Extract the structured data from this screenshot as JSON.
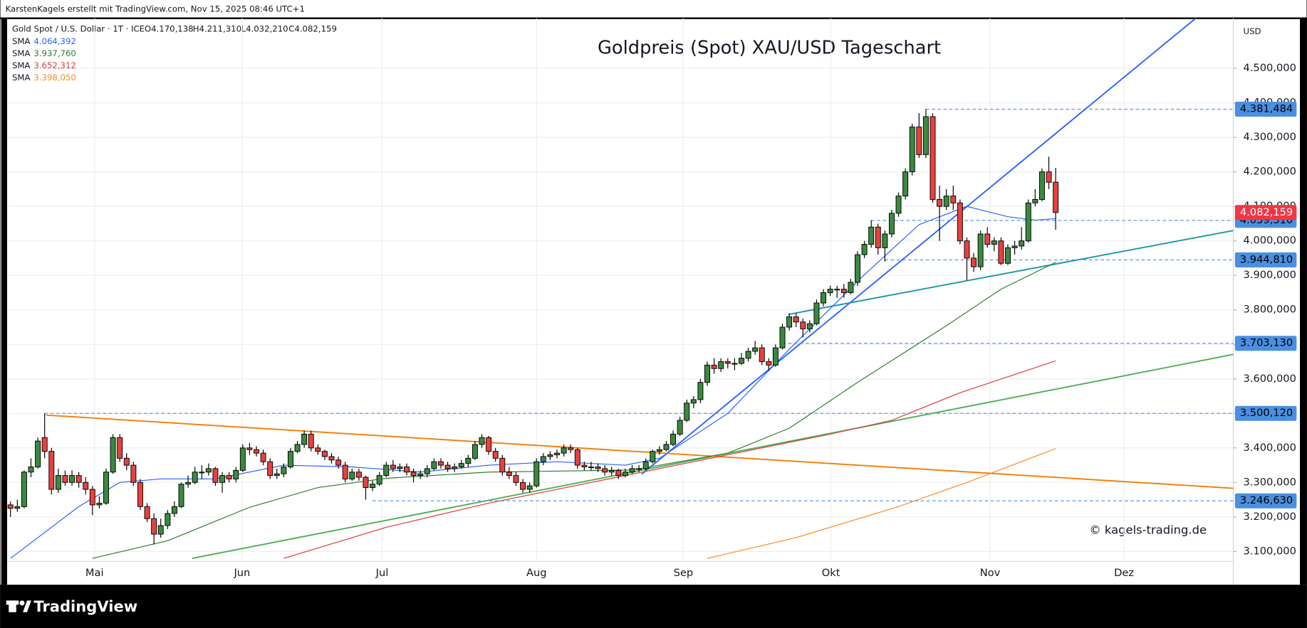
{
  "header": {
    "credit": "KarstenKagels erstellt mit TradingView.com, Nov 15, 2025 08:46 UTC+1",
    "symbol": "Gold Spot / U.S. Dollar · 1T · ICE",
    "ohlc_labels": [
      "O4.170,138",
      "H4.211,310",
      "L4.032,210",
      "C4.082,159"
    ]
  },
  "footer": {
    "brand": "TradingView"
  },
  "chart_data": {
    "type": "candlestick",
    "title": "Goldpreis (Spot) XAU/USD Tageschart",
    "y_unit": "USD",
    "watermark": "© kagels-trading.de",
    "up_color": "#3a8a3e",
    "down_color": "#e8413e",
    "grid": true,
    "xlim": [
      -0.5,
      179
    ],
    "ylim": [
      3071,
      4645
    ],
    "xticks": [
      {
        "value": 12.3,
        "label": "Mai"
      },
      {
        "value": 33.9,
        "label": "Jun"
      },
      {
        "value": 54.4,
        "label": "Jul"
      },
      {
        "value": 77,
        "label": "Aug"
      },
      {
        "value": 98.5,
        "label": "Sep"
      },
      {
        "value": 120.1,
        "label": "Okt"
      },
      {
        "value": 143.4,
        "label": "Nov"
      },
      {
        "value": 163,
        "label": "Dez"
      }
    ],
    "yticks": [
      {
        "value": 3100,
        "label": "3.100,000"
      },
      {
        "value": 3200,
        "label": "3.200,000"
      },
      {
        "value": 3300,
        "label": "3.300,000"
      },
      {
        "value": 3400,
        "label": "3.400,000"
      },
      {
        "value": 3500,
        "label": "3.500,000"
      },
      {
        "value": 3600,
        "label": "3.600,000"
      },
      {
        "value": 3700,
        "label": "3.700,000"
      },
      {
        "value": 3800,
        "label": "3.800,000"
      },
      {
        "value": 3900,
        "label": "3.900,000"
      },
      {
        "value": 4000,
        "label": "4.000,000"
      },
      {
        "value": 4100,
        "label": "4.100,000"
      },
      {
        "value": 4200,
        "label": "4.200,000"
      },
      {
        "value": 4300,
        "label": "4.300,000"
      },
      {
        "value": 4400,
        "label": "4.400,000"
      },
      {
        "value": 4500,
        "label": "4.500,000"
      }
    ],
    "ohlc": [
      [
        3235,
        3245,
        3200,
        3225
      ],
      [
        3225,
        3250,
        3215,
        3230
      ],
      [
        3230,
        3335,
        3225,
        3330
      ],
      [
        3330,
        3370,
        3315,
        3345
      ],
      [
        3345,
        3430,
        3340,
        3420
      ],
      [
        3430,
        3500,
        3370,
        3390
      ],
      [
        3390,
        3400,
        3265,
        3280
      ],
      [
        3280,
        3340,
        3270,
        3320
      ],
      [
        3320,
        3335,
        3290,
        3300
      ],
      [
        3300,
        3335,
        3290,
        3320
      ],
      [
        3320,
        3330,
        3285,
        3300
      ],
      [
        3300,
        3315,
        3265,
        3280
      ],
      [
        3280,
        3290,
        3205,
        3235
      ],
      [
        3235,
        3260,
        3225,
        3240
      ],
      [
        3240,
        3340,
        3235,
        3330
      ],
      [
        3330,
        3440,
        3325,
        3430
      ],
      [
        3430,
        3440,
        3360,
        3370
      ],
      [
        3370,
        3385,
        3335,
        3350
      ],
      [
        3350,
        3360,
        3290,
        3300
      ],
      [
        3300,
        3310,
        3220,
        3230
      ],
      [
        3230,
        3240,
        3185,
        3195
      ],
      [
        3195,
        3210,
        3120,
        3150
      ],
      [
        3150,
        3195,
        3140,
        3175
      ],
      [
        3175,
        3220,
        3165,
        3210
      ],
      [
        3210,
        3245,
        3200,
        3230
      ],
      [
        3230,
        3300,
        3225,
        3295
      ],
      [
        3295,
        3320,
        3285,
        3300
      ],
      [
        3300,
        3345,
        3295,
        3330
      ],
      [
        3330,
        3350,
        3310,
        3330
      ],
      [
        3330,
        3355,
        3320,
        3340
      ],
      [
        3340,
        3345,
        3290,
        3300
      ],
      [
        3300,
        3330,
        3270,
        3320
      ],
      [
        3320,
        3330,
        3300,
        3310
      ],
      [
        3310,
        3345,
        3300,
        3335
      ],
      [
        3335,
        3410,
        3330,
        3400
      ],
      [
        3400,
        3415,
        3380,
        3395
      ],
      [
        3395,
        3405,
        3375,
        3385
      ],
      [
        3385,
        3395,
        3350,
        3360
      ],
      [
        3360,
        3370,
        3310,
        3320
      ],
      [
        3320,
        3340,
        3310,
        3325
      ],
      [
        3325,
        3355,
        3315,
        3345
      ],
      [
        3345,
        3400,
        3340,
        3390
      ],
      [
        3390,
        3420,
        3385,
        3410
      ],
      [
        3410,
        3450,
        3400,
        3440
      ],
      [
        3440,
        3450,
        3390,
        3400
      ],
      [
        3400,
        3410,
        3380,
        3390
      ],
      [
        3390,
        3395,
        3365,
        3375
      ],
      [
        3375,
        3385,
        3355,
        3365
      ],
      [
        3365,
        3375,
        3340,
        3350
      ],
      [
        3350,
        3360,
        3300,
        3310
      ],
      [
        3310,
        3340,
        3305,
        3330
      ],
      [
        3330,
        3340,
        3305,
        3315
      ],
      [
        3315,
        3320,
        3250,
        3285
      ],
      [
        3285,
        3305,
        3275,
        3295
      ],
      [
        3295,
        3330,
        3290,
        3320
      ],
      [
        3320,
        3360,
        3315,
        3350
      ],
      [
        3350,
        3365,
        3330,
        3340
      ],
      [
        3340,
        3355,
        3330,
        3345
      ],
      [
        3345,
        3355,
        3320,
        3330
      ],
      [
        3330,
        3340,
        3300,
        3320
      ],
      [
        3320,
        3335,
        3310,
        3325
      ],
      [
        3325,
        3350,
        3315,
        3340
      ],
      [
        3340,
        3370,
        3335,
        3360
      ],
      [
        3360,
        3370,
        3340,
        3350
      ],
      [
        3350,
        3360,
        3330,
        3340
      ],
      [
        3340,
        3355,
        3330,
        3345
      ],
      [
        3345,
        3365,
        3340,
        3355
      ],
      [
        3355,
        3380,
        3345,
        3370
      ],
      [
        3370,
        3420,
        3365,
        3410
      ],
      [
        3410,
        3440,
        3400,
        3430
      ],
      [
        3430,
        3435,
        3380,
        3390
      ],
      [
        3390,
        3400,
        3360,
        3370
      ],
      [
        3370,
        3380,
        3320,
        3330
      ],
      [
        3330,
        3345,
        3310,
        3320
      ],
      [
        3320,
        3330,
        3290,
        3300
      ],
      [
        3300,
        3310,
        3270,
        3280
      ],
      [
        3280,
        3300,
        3270,
        3290
      ],
      [
        3290,
        3370,
        3285,
        3360
      ],
      [
        3360,
        3385,
        3350,
        3375
      ],
      [
        3375,
        3390,
        3365,
        3380
      ],
      [
        3380,
        3395,
        3370,
        3385
      ],
      [
        3385,
        3410,
        3375,
        3400
      ],
      [
        3400,
        3410,
        3385,
        3395
      ],
      [
        3395,
        3400,
        3340,
        3350
      ],
      [
        3350,
        3360,
        3335,
        3345
      ],
      [
        3345,
        3360,
        3335,
        3345
      ],
      [
        3345,
        3355,
        3330,
        3340
      ],
      [
        3340,
        3350,
        3320,
        3330
      ],
      [
        3330,
        3345,
        3320,
        3335
      ],
      [
        3335,
        3340,
        3310,
        3320
      ],
      [
        3320,
        3340,
        3315,
        3330
      ],
      [
        3330,
        3350,
        3325,
        3340
      ],
      [
        3340,
        3350,
        3330,
        3340
      ],
      [
        3340,
        3370,
        3335,
        3360
      ],
      [
        3360,
        3395,
        3355,
        3390
      ],
      [
        3390,
        3405,
        3380,
        3395
      ],
      [
        3395,
        3420,
        3390,
        3410
      ],
      [
        3410,
        3450,
        3405,
        3440
      ],
      [
        3440,
        3490,
        3435,
        3480
      ],
      [
        3480,
        3540,
        3475,
        3530
      ],
      [
        3530,
        3550,
        3515,
        3540
      ],
      [
        3540,
        3600,
        3530,
        3590
      ],
      [
        3590,
        3650,
        3580,
        3640
      ],
      [
        3640,
        3660,
        3615,
        3630
      ],
      [
        3630,
        3660,
        3620,
        3650
      ],
      [
        3650,
        3660,
        3630,
        3645
      ],
      [
        3645,
        3660,
        3625,
        3645
      ],
      [
        3645,
        3675,
        3640,
        3660
      ],
      [
        3660,
        3690,
        3650,
        3680
      ],
      [
        3680,
        3710,
        3670,
        3690
      ],
      [
        3690,
        3700,
        3640,
        3650
      ],
      [
        3650,
        3660,
        3625,
        3640
      ],
      [
        3640,
        3700,
        3635,
        3690
      ],
      [
        3690,
        3760,
        3685,
        3750
      ],
      [
        3750,
        3790,
        3740,
        3780
      ],
      [
        3780,
        3790,
        3750,
        3765
      ],
      [
        3765,
        3775,
        3720,
        3745
      ],
      [
        3745,
        3770,
        3735,
        3760
      ],
      [
        3760,
        3830,
        3755,
        3820
      ],
      [
        3820,
        3860,
        3810,
        3850
      ],
      [
        3850,
        3870,
        3840,
        3860
      ],
      [
        3860,
        3870,
        3835,
        3860
      ],
      [
        3860,
        3875,
        3835,
        3850
      ],
      [
        3850,
        3890,
        3845,
        3880
      ],
      [
        3880,
        3970,
        3870,
        3960
      ],
      [
        3960,
        4000,
        3950,
        3990
      ],
      [
        3990,
        4060,
        3980,
        4040
      ],
      [
        4040,
        4050,
        3960,
        3980
      ],
      [
        3980,
        4030,
        3940,
        4020
      ],
      [
        4020,
        4090,
        4010,
        4080
      ],
      [
        4080,
        4140,
        4070,
        4130
      ],
      [
        4130,
        4210,
        4120,
        4200
      ],
      [
        4200,
        4340,
        4190,
        4330
      ],
      [
        4330,
        4370,
        4240,
        4250
      ],
      [
        4250,
        4381.484,
        4240,
        4360
      ],
      [
        4360,
        4370,
        4110,
        4120
      ],
      [
        4120,
        4160,
        4000,
        4100
      ],
      [
        4100,
        4150,
        4090,
        4130
      ],
      [
        4130,
        4160,
        4090,
        4110
      ],
      [
        4110,
        4120,
        3990,
        4000
      ],
      [
        4000,
        4010,
        3886,
        3950
      ],
      [
        3950,
        3965,
        3910,
        3925
      ],
      [
        3925,
        4030,
        3915,
        4020
      ],
      [
        4020,
        4040,
        3980,
        3990
      ],
      [
        3990,
        4010,
        3970,
        4000
      ],
      [
        4000,
        4010,
        3930,
        3935
      ],
      [
        3935,
        3990,
        3930,
        3980
      ],
      [
        3980,
        4000,
        3960,
        3985
      ],
      [
        3985,
        4040,
        3975,
        4000
      ],
      [
        4000,
        4120,
        3995,
        4110
      ],
      [
        4110,
        4150,
        4100,
        4120
      ],
      [
        4120,
        4210,
        4115,
        4200
      ],
      [
        4200,
        4244,
        4150,
        4170
      ],
      [
        4170.138,
        4211.31,
        4032.21,
        4082.159
      ]
    ],
    "series": [
      {
        "name": "SMA",
        "value_label": "4.064,392",
        "color": "#2962ff",
        "x": [
          0,
          10,
          16,
          22,
          30,
          40,
          50,
          60,
          70,
          80,
          90,
          95,
          105,
          114,
          125,
          133,
          140,
          146,
          150,
          153
        ],
        "values": [
          3080,
          3230,
          3300,
          3310,
          3310,
          3350,
          3345,
          3330,
          3350,
          3360,
          3350,
          3370,
          3500,
          3686,
          3902,
          4047,
          4100,
          4070,
          4060,
          4064.392
        ]
      },
      {
        "name": "SMA",
        "value_label": "3.937,760",
        "color": "#2e7d32",
        "x": [
          12,
          23,
          35,
          45,
          55,
          70,
          91,
          105,
          114,
          124,
          137,
          145,
          153
        ],
        "values": [
          3080,
          3131,
          3228,
          3285,
          3312,
          3330,
          3336,
          3385,
          3457,
          3590,
          3754,
          3860,
          3937.76
        ]
      },
      {
        "name": "SMA",
        "value_label": "3.652,312",
        "color": "#e03a3a",
        "x": [
          40,
          55,
          70,
          80,
          90,
          100,
          110,
          120,
          129,
          139,
          153
        ],
        "values": [
          3080,
          3170,
          3240,
          3280,
          3320,
          3360,
          3400,
          3440,
          3480,
          3560,
          3652.312
        ]
      },
      {
        "name": "SMA",
        "value_label": "3.398,050",
        "color": "#ff8a1a",
        "x": [
          102,
          115,
          130,
          140,
          153
        ],
        "values": [
          3080,
          3140,
          3230,
          3300,
          3398.05
        ]
      }
    ],
    "trendlines": [
      {
        "color": "#2962ff",
        "x": [
          92.4,
          173.8
        ],
        "values": [
          3324,
          4650
        ]
      },
      {
        "color": "#1597a5",
        "x": [
          113.9,
          179
        ],
        "values": [
          3787,
          4030
        ]
      },
      {
        "color": "#4caf50",
        "x": [
          26.6,
          179
        ],
        "values": [
          3080,
          3671
        ]
      },
      {
        "color": "#f57c00",
        "x": [
          5.2,
          179
        ],
        "values": [
          3495,
          3283
        ]
      }
    ],
    "levels": [
      {
        "from": 134,
        "value": 4381.484,
        "label": "4.381,484"
      },
      {
        "from": 126,
        "value": 4059.31,
        "label": "4.059,310"
      },
      {
        "from": 128,
        "value": 3944.81,
        "label": "3.944,810"
      },
      {
        "from": 113,
        "value": 3703.13,
        "label": "3.703,130"
      },
      {
        "from": 5,
        "value": 3500.12,
        "label": "3.500,120"
      },
      {
        "from": 53,
        "value": 3246.63,
        "label": "3.246,630"
      }
    ],
    "level_color": "#4a8fe0",
    "last_price": {
      "value": 4082.159,
      "label": "4.082,159",
      "color": "#f23645"
    }
  }
}
